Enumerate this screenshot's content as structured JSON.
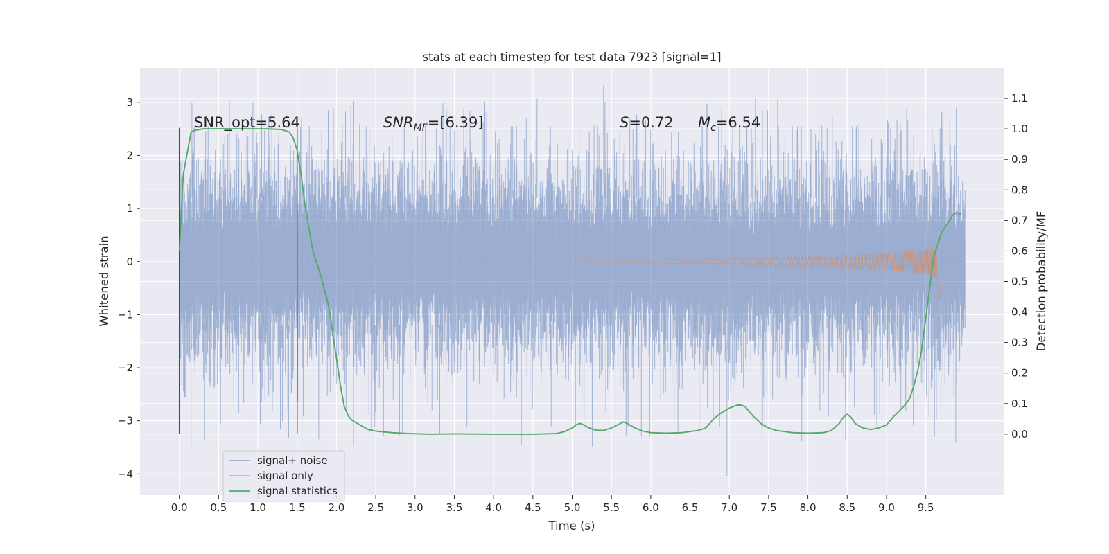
{
  "chart_data": {
    "type": "line",
    "title": "stats at each timestep for test data 7923 [signal=1]",
    "xlabel": "Time (s)",
    "ylabel": "Whitened strain",
    "ylabel_right": "Detection probability/MF",
    "xlim": [
      -0.5,
      10.5
    ],
    "ylim": [
      -4.4,
      3.65
    ],
    "ylim_right": [
      -0.2,
      1.2
    ],
    "x_ticks": [
      "0.0",
      "0.5",
      "1.0",
      "1.5",
      "2.0",
      "2.5",
      "3.0",
      "3.5",
      "4.0",
      "4.5",
      "5.0",
      "5.5",
      "6.0",
      "6.5",
      "7.0",
      "7.5",
      "8.0",
      "8.5",
      "9.0",
      "9.5"
    ],
    "y_ticks": [
      "3",
      "2",
      "1",
      "0",
      "−1",
      "−2",
      "−3",
      "−4"
    ],
    "y_ticks_right": [
      "1.1",
      "1.0",
      "0.9",
      "0.8",
      "0.7",
      "0.6",
      "0.5",
      "0.4",
      "0.3",
      "0.2",
      "0.1",
      "0.0"
    ],
    "grid": true,
    "legend_position": "lower-left",
    "annotations": {
      "snr_opt": "SNR_opt=5.64",
      "snr_mf_base": "SNR",
      "snr_mf_sub": "MF",
      "snr_mf_value": "=[6.39]",
      "s_label": "S",
      "s_value": "=0.72",
      "mc_base": "M",
      "mc_sub": "c",
      "mc_value": "=6.54"
    },
    "vertical_lines": [
      {
        "x": 0.0,
        "y_range": [
          -3.25,
          2.52
        ]
      },
      {
        "x": 1.5,
        "y_range": [
          -3.25,
          2.52
        ]
      }
    ],
    "series": [
      {
        "name": "signal+ noise",
        "color": "#4c72b0",
        "t_range": [
          0.0,
          10.0
        ],
        "spread_std": 0.75,
        "max_positive": 3.32,
        "min_negative": -4.05
      },
      {
        "name": "signal only",
        "color": "#dd8452",
        "t_range": [
          0.0,
          10.0
        ],
        "envelope": {
          "x": [
            0.0,
            5.0,
            6.0,
            7.0,
            8.0,
            9.0,
            9.5,
            9.65,
            9.7
          ],
          "y": [
            0.01,
            0.015,
            0.03,
            0.06,
            0.1,
            0.16,
            0.24,
            0.32,
            0.55
          ]
        },
        "chirp_end": 9.7,
        "min_value": -0.7
      },
      {
        "name": "signal statistics",
        "color": "#55a868",
        "axis": "right",
        "x": [
          0.0,
          0.05,
          0.1,
          0.15,
          0.2,
          0.3,
          0.5,
          0.8,
          1.1,
          1.3,
          1.4,
          1.45,
          1.5,
          1.55,
          1.6,
          1.7,
          1.8,
          1.9,
          2.0,
          2.05,
          2.1,
          2.15,
          2.2,
          2.3,
          2.4,
          2.5,
          2.7,
          2.9,
          3.2,
          3.5,
          4.0,
          4.5,
          4.8,
          4.9,
          5.0,
          5.05,
          5.1,
          5.15,
          5.2,
          5.3,
          5.4,
          5.5,
          5.6,
          5.65,
          5.7,
          5.8,
          5.9,
          6.0,
          6.2,
          6.4,
          6.6,
          6.7,
          6.8,
          6.9,
          7.0,
          7.1,
          7.15,
          7.2,
          7.3,
          7.4,
          7.5,
          7.6,
          7.8,
          8.0,
          8.2,
          8.3,
          8.4,
          8.45,
          8.5,
          8.55,
          8.6,
          8.7,
          8.8,
          8.9,
          9.0,
          9.1,
          9.2,
          9.25,
          9.3,
          9.35,
          9.4,
          9.45,
          9.5,
          9.55,
          9.6,
          9.7,
          9.8,
          9.85,
          9.9,
          9.95
        ],
        "y": [
          0.6,
          0.85,
          0.92,
          0.99,
          0.995,
          1.0,
          1.0,
          1.0,
          1.0,
          0.998,
          0.99,
          0.97,
          0.93,
          0.85,
          0.75,
          0.6,
          0.52,
          0.42,
          0.25,
          0.16,
          0.09,
          0.06,
          0.045,
          0.03,
          0.015,
          0.01,
          0.005,
          0.002,
          0.0,
          0.001,
          0.0,
          0.0,
          0.002,
          0.008,
          0.02,
          0.03,
          0.035,
          0.03,
          0.022,
          0.013,
          0.012,
          0.02,
          0.033,
          0.04,
          0.035,
          0.02,
          0.01,
          0.005,
          0.003,
          0.005,
          0.012,
          0.02,
          0.05,
          0.07,
          0.085,
          0.095,
          0.095,
          0.09,
          0.06,
          0.035,
          0.02,
          0.012,
          0.005,
          0.003,
          0.005,
          0.012,
          0.035,
          0.055,
          0.065,
          0.055,
          0.035,
          0.02,
          0.015,
          0.02,
          0.03,
          0.06,
          0.085,
          0.1,
          0.12,
          0.16,
          0.21,
          0.28,
          0.38,
          0.48,
          0.58,
          0.66,
          0.7,
          0.72,
          0.725,
          0.72
        ]
      }
    ]
  }
}
